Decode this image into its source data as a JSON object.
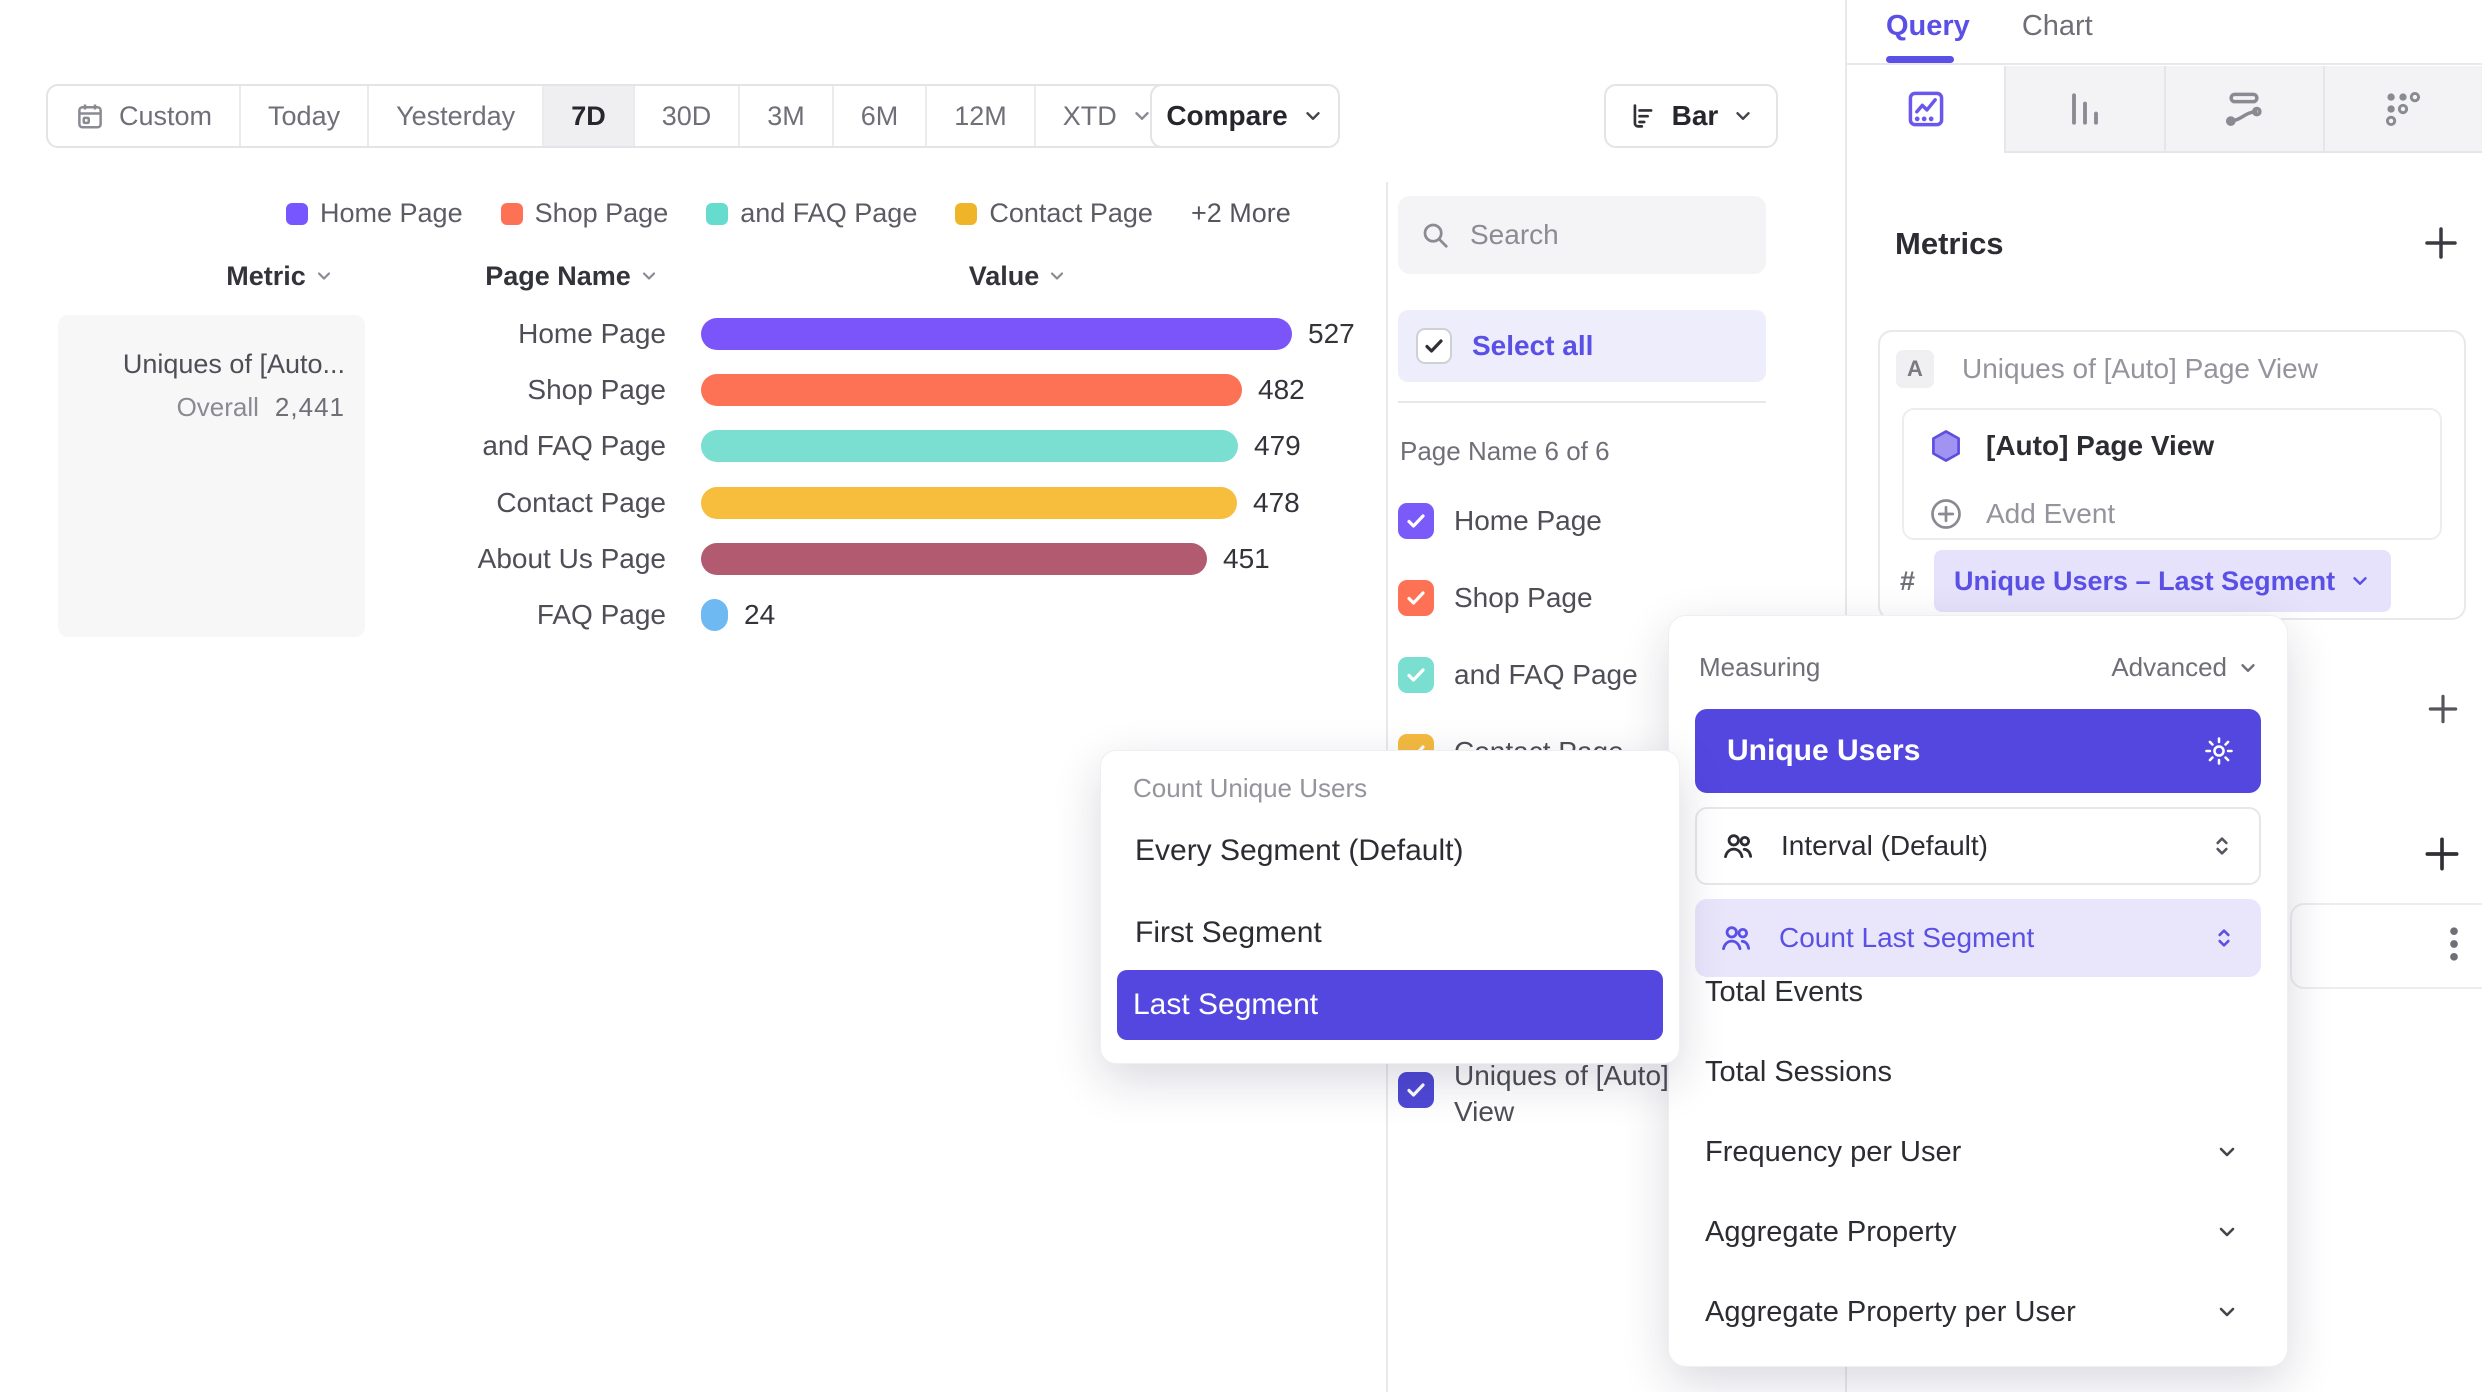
{
  "palette": {
    "accent": "#5447e0",
    "accent_text": "#5a50e6",
    "lavender": "#e9e6fc",
    "border": "#e6e6e9"
  },
  "toolbar": {
    "date_ranges": [
      {
        "label": "Custom",
        "icon": "calendar",
        "selected": false
      },
      {
        "label": "Today",
        "selected": false
      },
      {
        "label": "Yesterday",
        "selected": false
      },
      {
        "label": "7D",
        "selected": true
      },
      {
        "label": "30D",
        "selected": false
      },
      {
        "label": "3M",
        "selected": false
      },
      {
        "label": "6M",
        "selected": false
      },
      {
        "label": "12M",
        "selected": false
      },
      {
        "label": "XTD",
        "chevron": true,
        "selected": false
      }
    ],
    "compare_label": "Compare",
    "chart_type_label": "Bar"
  },
  "legend": {
    "items": [
      {
        "label": "Home Page",
        "color": "#7856ff"
      },
      {
        "label": "Shop Page",
        "color": "#fd7155"
      },
      {
        "label": "and FAQ Page",
        "color": "#66dcce"
      },
      {
        "label": "Contact Page",
        "color": "#f0b429"
      }
    ],
    "more_label": "+2 More"
  },
  "chart_data": {
    "type": "bar",
    "orientation": "horizontal",
    "title": "Uniques of [Auto] Page View",
    "categories": [
      "Home Page",
      "Shop Page",
      "and FAQ Page",
      "Contact Page",
      "About Us Page",
      "FAQ Page"
    ],
    "values": [
      527,
      482,
      479,
      478,
      451,
      24
    ],
    "colors": [
      "#7b55fa",
      "#fd7155",
      "#7adfd1",
      "#f7bd3d",
      "#b25a70",
      "#6fb9f2"
    ],
    "overall_total": 2441,
    "xlabel": "Value",
    "ylabel": "Page Name",
    "legend_position": "top"
  },
  "table": {
    "headers": [
      "Metric",
      "Page Name",
      "Value"
    ],
    "metric_cell": {
      "title": "Uniques of [Auto...",
      "overall_label": "Overall",
      "overall_value": "2,441"
    },
    "rows": [
      {
        "label": "Home Page",
        "value": "527",
        "num": 527,
        "color": "#7b55fa"
      },
      {
        "label": "Shop Page",
        "value": "482",
        "num": 482,
        "color": "#fd7155"
      },
      {
        "label": "and FAQ Page",
        "value": "479",
        "num": 479,
        "color": "#7adfd1"
      },
      {
        "label": "Contact Page",
        "value": "478",
        "num": 478,
        "color": "#f7bd3d"
      },
      {
        "label": "About Us Page",
        "value": "451",
        "num": 451,
        "color": "#b25a70"
      },
      {
        "label": "FAQ Page",
        "value": "24",
        "num": 24,
        "color": "#6fb9f2"
      }
    ]
  },
  "filter_panel": {
    "search_placeholder": "Search",
    "select_all_label": "Select all",
    "group_label": "Page Name 6 of 6",
    "items": [
      {
        "label": "Home Page",
        "color": "#7a5af8",
        "checked": true
      },
      {
        "label": "Shop Page",
        "color": "#fd7155",
        "checked": true
      },
      {
        "label": "and FAQ Page",
        "color": "#7adfd1",
        "checked": true
      },
      {
        "label": "Contact Page",
        "color": "#f5bb40",
        "checked": true
      },
      {
        "label": "About Us Page",
        "color": "#b25a70",
        "checked": true
      },
      {
        "label": "FAQ Page",
        "color": "#6fb9f2",
        "checked": true
      }
    ],
    "metric_item": {
      "label": "Uniques of [Auto] Page View",
      "color": "#4f48d6",
      "checked": true
    }
  },
  "sidebar": {
    "tabs": [
      {
        "label": "Query",
        "active": true
      },
      {
        "label": "Chart",
        "active": false
      }
    ],
    "chart_type_tabs": [
      {
        "name": "insights",
        "active": true
      },
      {
        "name": "bar-chart",
        "active": false
      },
      {
        "name": "flow",
        "active": false
      },
      {
        "name": "retention",
        "active": false
      }
    ],
    "metrics": {
      "heading": "Metrics",
      "badge": "A",
      "metric_title": "Uniques of [Auto] Page View",
      "event_label": "[Auto] Page View",
      "add_event_label": "Add Event",
      "hash_symbol": "#",
      "measure_pill_label": "Unique Users – Last Segment"
    }
  },
  "measuring_popover": {
    "title": "Measuring",
    "advanced_label": "Advanced",
    "selected_option": "Unique Users",
    "rows": [
      {
        "label": "Interval (Default)",
        "style": "plain"
      },
      {
        "label": "Count Last Segment",
        "style": "active"
      }
    ],
    "options": [
      {
        "label": "Total Events",
        "chevron": false
      },
      {
        "label": "Total Sessions",
        "chevron": false
      },
      {
        "label": "Frequency per User",
        "chevron": true
      },
      {
        "label": "Aggregate Property",
        "chevron": true
      },
      {
        "label": "Aggregate Property per User",
        "chevron": true
      }
    ]
  },
  "segment_popover": {
    "title": "Count Unique Users",
    "options": [
      {
        "label": "Every Segment (Default)",
        "selected": false
      },
      {
        "label": "First Segment",
        "selected": false
      },
      {
        "label": "Last Segment",
        "selected": true
      }
    ]
  }
}
